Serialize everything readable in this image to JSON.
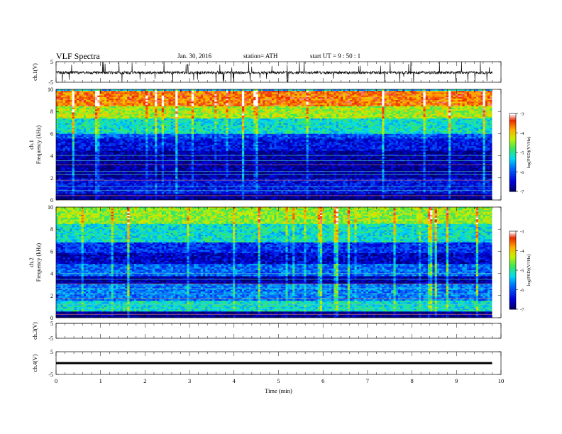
{
  "header": {
    "title": "VLF  Spectra",
    "date": "Jan. 30, 2016",
    "station": "station= ATH",
    "start": "start  UT  =   9  : 50 : 1"
  },
  "chart_data": [
    {
      "type": "line",
      "panel": "ch1-waveform",
      "ylabel": "ch.1(V)",
      "ylim": [
        -5,
        5
      ],
      "yticks": [
        "5",
        "-5"
      ],
      "xlim": [
        0,
        10
      ],
      "data_extent_min": 9.8,
      "baseline_v": -0.3,
      "style": "noisy waveform with frequent impulsive spikes"
    },
    {
      "type": "heatmap",
      "panel": "ch1-spectrogram",
      "ylabel": "ch.1\nFrequency (kHz)",
      "ylim": [
        0,
        10
      ],
      "yticks": [
        "0",
        "2",
        "4",
        "6",
        "8",
        "10"
      ],
      "xlim": [
        0,
        10
      ],
      "data_extent_min": 9.8,
      "colorbar": {
        "label": "log(PSD)(V²/Hz)",
        "range": [
          -7,
          -3
        ],
        "ticks": [
          "-3",
          "-4",
          "-5",
          "-6",
          "-7"
        ]
      },
      "bands": [
        {
          "from_khz": 9.8,
          "to_khz": 10,
          "level": -5.5
        },
        {
          "from_khz": 8.5,
          "to_khz": 9.8,
          "level": -3.6
        },
        {
          "from_khz": 7.3,
          "to_khz": 8.5,
          "level": -4.4
        },
        {
          "from_khz": 6.0,
          "to_khz": 7.3,
          "level": -5.2
        },
        {
          "from_khz": 5.5,
          "to_khz": 6.0,
          "level": -6.0
        },
        {
          "from_khz": 4.5,
          "to_khz": 5.5,
          "level": -6.4
        },
        {
          "from_khz": 2.0,
          "to_khz": 4.5,
          "level": -6.8
        },
        {
          "from_khz": 0.5,
          "to_khz": 2.0,
          "level": -6.4
        },
        {
          "from_khz": 0.0,
          "to_khz": 0.5,
          "level": -6.9
        }
      ]
    },
    {
      "type": "heatmap",
      "panel": "ch2-spectrogram",
      "ylabel": "ch.2\nFrequency (kHz)",
      "ylim": [
        0,
        10
      ],
      "yticks": [
        "0",
        "2",
        "4",
        "6",
        "8",
        "10"
      ],
      "xlim": [
        0,
        10
      ],
      "data_extent_min": 9.8,
      "colorbar": {
        "label": "log(PSD)(V²/Hz)",
        "range": [
          -7,
          -3
        ],
        "ticks": [
          "-3",
          "-4",
          "-5",
          "-6",
          "-7"
        ]
      },
      "bands": [
        {
          "from_khz": 8.5,
          "to_khz": 10,
          "level": -4.5
        },
        {
          "from_khz": 6.8,
          "to_khz": 8.5,
          "level": -5.2
        },
        {
          "from_khz": 5.8,
          "to_khz": 6.8,
          "level": -6.2
        },
        {
          "from_khz": 4.8,
          "to_khz": 5.8,
          "level": -6.6
        },
        {
          "from_khz": 3.8,
          "to_khz": 4.8,
          "level": -5.9
        },
        {
          "from_khz": 3.0,
          "to_khz": 3.8,
          "level": -6.8
        },
        {
          "from_khz": 1.5,
          "to_khz": 3.0,
          "level": -5.8
        },
        {
          "from_khz": 0.5,
          "to_khz": 1.5,
          "level": -5.2
        },
        {
          "from_khz": 0.0,
          "to_khz": 0.5,
          "level": -6.9
        }
      ]
    },
    {
      "type": "line",
      "panel": "ch3-waveform",
      "ylabel": "ch.3(V)",
      "ylim": [
        -5,
        5
      ],
      "yticks": [
        "5",
        "-5"
      ],
      "xlim": [
        0,
        10
      ],
      "data_extent_min": 9.8,
      "constant_v": 5,
      "line_color": "#aaaaaa"
    },
    {
      "type": "line",
      "panel": "ch4-waveform",
      "ylabel": "ch.4(V)",
      "ylim": [
        -5,
        5
      ],
      "yticks": [
        "5",
        "-5"
      ],
      "xlim": [
        0,
        10
      ],
      "data_extent_min": 9.8,
      "constant_v": 0,
      "line_color": "#000000",
      "xlabel": "Time  (min)",
      "xticks": [
        "0",
        "1",
        "2",
        "3",
        "4",
        "5",
        "6",
        "7",
        "8",
        "9",
        "10"
      ]
    }
  ]
}
